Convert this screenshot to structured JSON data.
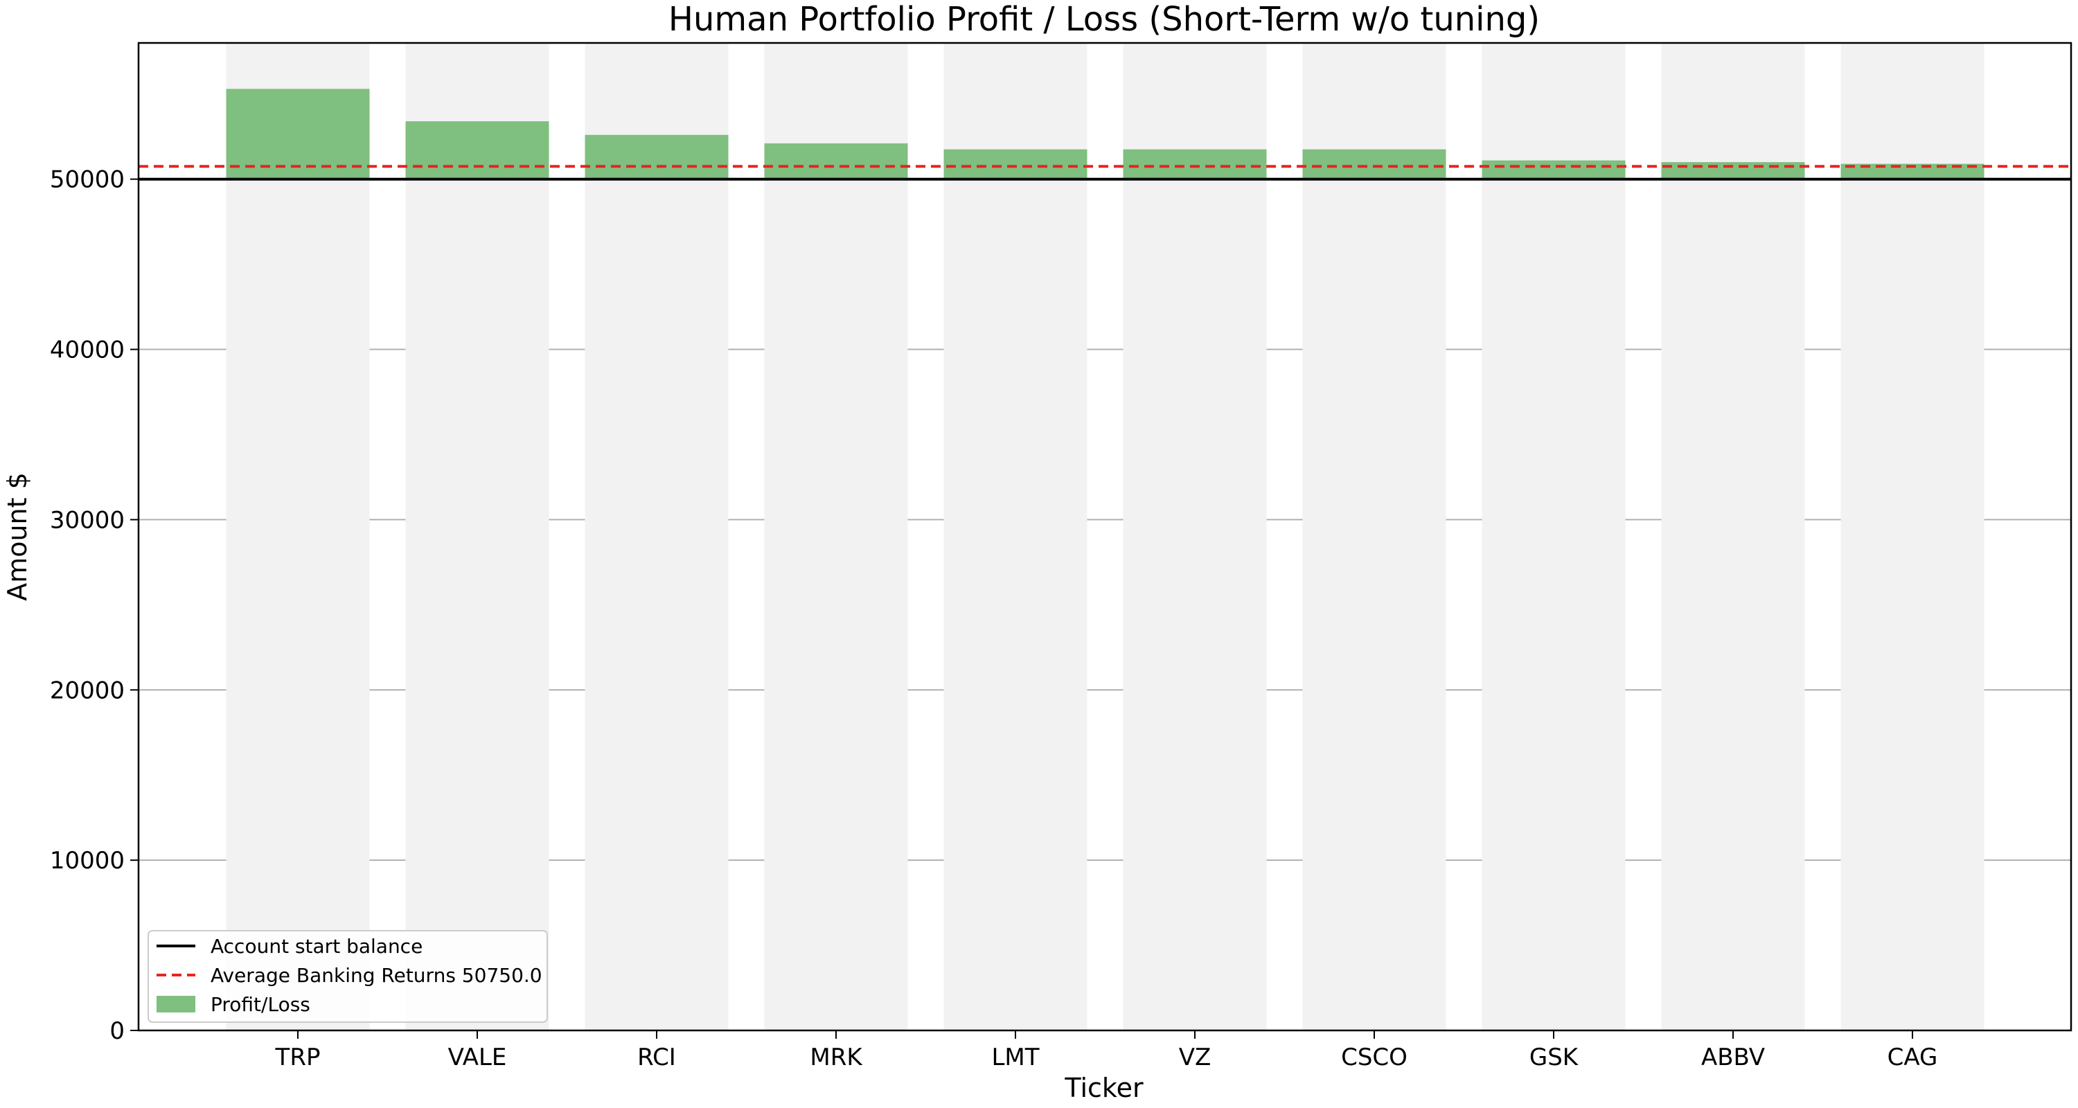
{
  "chart_data": {
    "type": "bar",
    "title": "Human Portfolio Profit / Loss (Short-Term w/o tuning)",
    "xlabel": "Ticker",
    "ylabel": "Amount $",
    "ylim": [
      0,
      58000
    ],
    "yticks": [
      0,
      10000,
      20000,
      30000,
      40000,
      50000
    ],
    "grid": true,
    "legend_position": "lower-left",
    "categories": [
      "TRP",
      "VALE",
      "RCI",
      "MRK",
      "LMT",
      "VZ",
      "CSCO",
      "GSK",
      "ABBV",
      "CAG"
    ],
    "series": [
      {
        "name": "Profit/Loss",
        "color": "#7fbf7f",
        "values": [
          55300,
          53400,
          52600,
          52100,
          51750,
          51750,
          51750,
          51100,
          51000,
          50900
        ]
      }
    ],
    "background_bar_color": "#f2f2f2",
    "reference_lines": [
      {
        "name": "Account start balance",
        "value": 50000,
        "color": "#000000",
        "style": "solid"
      },
      {
        "name": "Average Banking Returns 50750.0",
        "value": 50750,
        "color": "#e8241f",
        "style": "dashed"
      }
    ]
  }
}
